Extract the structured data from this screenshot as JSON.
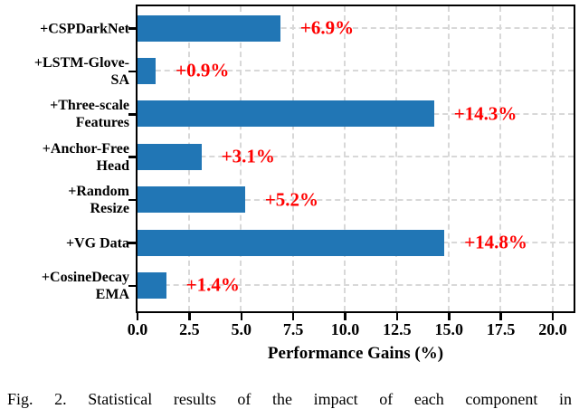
{
  "chart_data": {
    "type": "bar",
    "orientation": "horizontal",
    "title": "",
    "xlabel": "Performance Gains (%)",
    "ylabel": "",
    "categories": [
      "+CSPDarkNet",
      "+LSTM-Glove-\nSA",
      "+Three-scale\nFeatures",
      "+Anchor-Free\nHead",
      "+Random\nResize",
      "+VG Data",
      "+CosineDecay\nEMA"
    ],
    "values": [
      6.9,
      0.9,
      14.3,
      3.1,
      5.2,
      14.8,
      1.4
    ],
    "value_labels": [
      "+6.9%",
      "+0.9%",
      "+14.3%",
      "+3.1%",
      "+5.2%",
      "+14.8%",
      "+1.4%"
    ],
    "xticks": [
      0.0,
      2.5,
      5.0,
      7.5,
      10.0,
      12.5,
      15.0,
      17.5,
      20.0
    ],
    "xtick_labels": [
      "0.0",
      "2.5",
      "5.0",
      "7.5",
      "10.0",
      "12.5",
      "15.0",
      "17.5",
      "20.0"
    ],
    "xlim": [
      0,
      21
    ],
    "grid": true,
    "grid_style": "dashed",
    "legend": false,
    "bar_color": "#2176b5",
    "value_label_color": "#ff0000",
    "grid_color": "#d8d8d8",
    "spine_color": "#000000"
  },
  "caption": "Fig. 2.  Statistical results of the impact of each component in"
}
